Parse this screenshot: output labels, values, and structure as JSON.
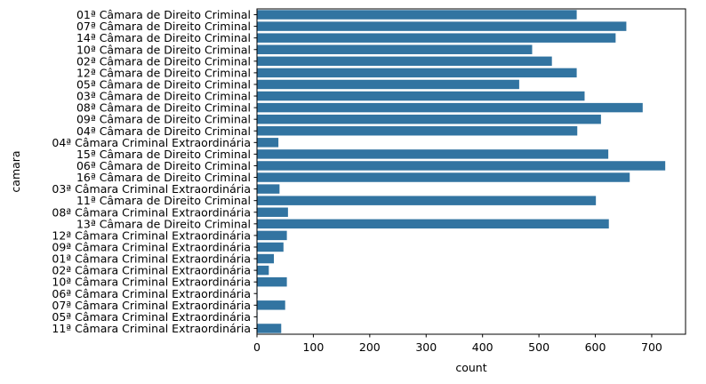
{
  "chart_data": {
    "type": "bar",
    "orientation": "horizontal",
    "xlabel": "count",
    "ylabel": "camara",
    "xlim": [
      0,
      760
    ],
    "xticks": [
      0,
      100,
      200,
      300,
      400,
      500,
      600,
      700
    ],
    "grid": false,
    "bar_color": "#3274a1",
    "categories": [
      "01ª Câmara de Direito Criminal",
      "07ª Câmara de Direito Criminal",
      "14ª Câmara de Direito Criminal",
      "10ª Câmara de Direito Criminal",
      "02ª Câmara de Direito Criminal",
      "12ª Câmara de Direito Criminal",
      "05ª Câmara de Direito Criminal",
      "03ª Câmara de Direito Criminal",
      "08ª Câmara de Direito Criminal",
      "09ª Câmara de Direito Criminal",
      "04ª Câmara de Direito Criminal",
      "04ª Câmara Criminal Extraordinária",
      "15ª Câmara de Direito Criminal",
      "06ª Câmara de Direito Criminal",
      "16ª Câmara de Direito Criminal",
      "03ª Câmara Criminal Extraordinária",
      "11ª Câmara de Direito Criminal",
      "08ª Câmara Criminal Extraordinária",
      "13ª Câmara de Direito Criminal",
      "12ª Câmara Criminal Extraordinária",
      "09ª Câmara Criminal Extraordinária",
      "01ª Câmara Criminal Extraordinária",
      "02ª Câmara Criminal Extraordinária",
      "10ª Câmara Criminal Extraordinária",
      "06ª Câmara Criminal Extraordinária",
      "07ª Câmara Criminal Extraordinária",
      "05ª Câmara Criminal Extraordinária",
      "11ª Câmara Criminal Extraordinária"
    ],
    "values": [
      567,
      655,
      636,
      488,
      523,
      567,
      465,
      581,
      684,
      610,
      568,
      38,
      623,
      724,
      661,
      40,
      601,
      55,
      624,
      53,
      47,
      30,
      21,
      53,
      1,
      50,
      1,
      43
    ]
  }
}
